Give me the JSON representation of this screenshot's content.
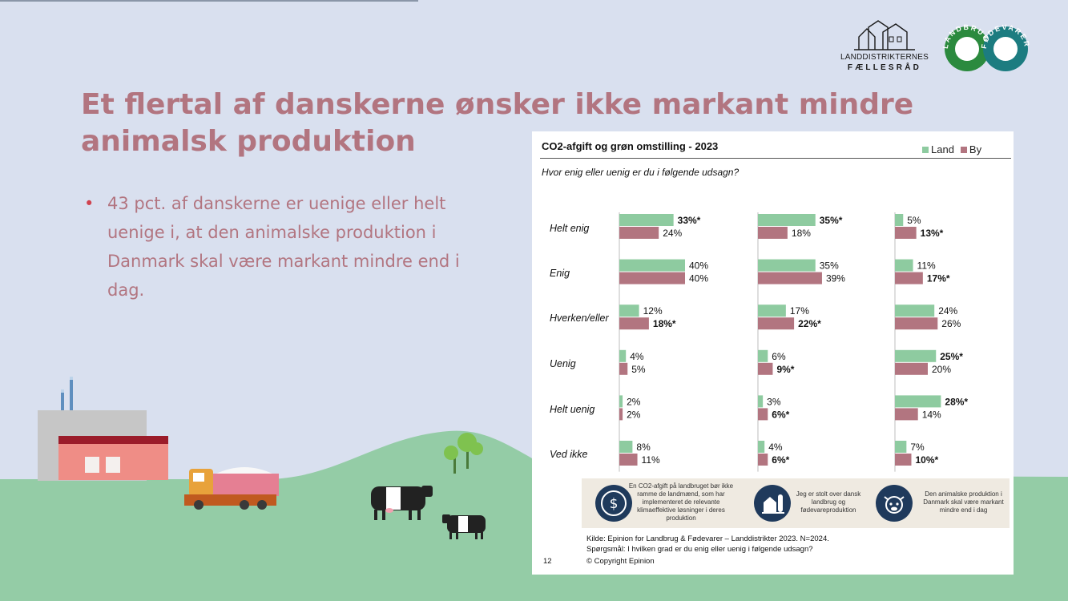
{
  "slide": {
    "title": "Et flertal af danskerne ønsker ikke markant mindre animalsk produktion",
    "bullet": "43 pct. af danskerne er uenige eller helt uenige i, at den animalske produktion i Danmark skal være markant mindre end i dag."
  },
  "logos": {
    "ldf_line1": "LANDDISTRIKTERNES",
    "ldf_line2": "FÆLLESRÅD",
    "lf_ring_left": "LANDBRUG",
    "lf_ring_right": "FØDEVARER"
  },
  "colors": {
    "land": "#8ecba0",
    "by": "#b27580",
    "background": "#d9e0ef",
    "hill": "#94cca6",
    "title": "#b27580",
    "icon": "#1f3a5c"
  },
  "chart_data": {
    "type": "bar",
    "orientation": "horizontal",
    "title": "CO2-afgift og grøn omstilling - 2023",
    "question": "Hvor enig eller uenig er du i følgende udsagn?",
    "legend": [
      "Land",
      "By"
    ],
    "categories": [
      "Helt enig",
      "Enig",
      "Hverken/eller",
      "Uenig",
      "Helt uenig",
      "Ved ikke"
    ],
    "panels": [
      {
        "statement": "En CO2-afgift på landbruget bør ikke ramme de landmænd, som har implementeret de relevante klimaeffektive løsninger i deres produktion",
        "icon": "dollar-icon",
        "series": [
          {
            "name": "Land",
            "values": [
              33,
              40,
              12,
              4,
              2,
              8
            ],
            "labels": [
              "33%*",
              "40%",
              "12%",
              "4%",
              "2%",
              "8%"
            ]
          },
          {
            "name": "By",
            "values": [
              24,
              40,
              18,
              5,
              2,
              11
            ],
            "labels": [
              "24%",
              "40%",
              "18%*",
              "5%",
              "2%",
              "11%"
            ]
          }
        ]
      },
      {
        "statement": "Jeg er stolt over dansk landbrug og fødevareproduktion",
        "icon": "farm-icon",
        "series": [
          {
            "name": "Land",
            "values": [
              35,
              35,
              17,
              6,
              3,
              4
            ],
            "labels": [
              "35%*",
              "35%",
              "17%",
              "6%",
              "3%",
              "4%"
            ]
          },
          {
            "name": "By",
            "values": [
              18,
              39,
              22,
              9,
              6,
              6
            ],
            "labels": [
              "18%",
              "39%",
              "22%*",
              "9%*",
              "6%*",
              "6%*"
            ]
          }
        ]
      },
      {
        "statement": "Den animalske produktion i Danmark skal være markant mindre end i dag",
        "icon": "cow-icon",
        "series": [
          {
            "name": "Land",
            "values": [
              5,
              11,
              24,
              25,
              28,
              7
            ],
            "labels": [
              "5%",
              "11%",
              "24%",
              "25%*",
              "28%*",
              "7%"
            ]
          },
          {
            "name": "By",
            "values": [
              13,
              17,
              26,
              20,
              14,
              10
            ],
            "labels": [
              "13%*",
              "17%*",
              "26%",
              "20%",
              "14%",
              "10%*"
            ]
          }
        ]
      }
    ],
    "xlim": [
      0,
      100
    ],
    "note_star": "*",
    "source": "Kilde: Epinion for Landbrug & Fødevarer – Landdistrikter 2023. N=2024.",
    "question_note": "Spørgsmål: I hvilken grad er du enig eller uenig i følgende udsagn?",
    "copyright": "© Copyright Epinion",
    "page_number": "12"
  }
}
